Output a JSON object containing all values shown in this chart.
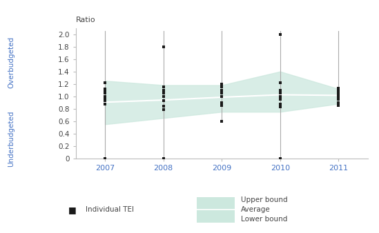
{
  "years": [
    2007,
    2008,
    2009,
    2010,
    2011
  ],
  "scatter_data": {
    "2007": [
      0.0,
      0.87,
      0.93,
      0.97,
      1.0,
      1.05,
      1.08,
      1.12,
      1.22
    ],
    "2008": [
      0.0,
      0.79,
      0.84,
      0.93,
      1.0,
      1.05,
      1.1,
      1.15,
      1.8
    ],
    "2009": [
      0.6,
      0.85,
      0.9,
      1.0,
      1.05,
      1.1,
      1.15,
      1.2
    ],
    "2010": [
      0.0,
      0.83,
      0.88,
      0.95,
      1.0,
      1.05,
      1.1,
      1.22,
      2.0
    ],
    "2011": [
      0.85,
      0.9,
      0.95,
      1.0,
      1.03,
      1.07,
      1.1,
      1.13
    ]
  },
  "vertical_lines": {
    "2007": [
      0.0,
      2.05
    ],
    "2008": [
      0.0,
      2.05
    ],
    "2009": [
      0.6,
      2.05
    ],
    "2010": [
      0.0,
      2.05
    ],
    "2011": [
      0.85,
      2.05
    ]
  },
  "avg_values": [
    0.905,
    0.94,
    0.985,
    1.025,
    1.015
  ],
  "upper_bound": [
    1.25,
    1.18,
    1.18,
    1.4,
    1.12
  ],
  "lower_bound": [
    0.55,
    0.65,
    0.75,
    0.75,
    0.88
  ],
  "ylim": [
    0,
    2.1
  ],
  "yticks": [
    0.0,
    0.2,
    0.4,
    0.6,
    0.8,
    1.0,
    1.2,
    1.4,
    1.6,
    1.8,
    2.0
  ],
  "band_color": "#cce8de",
  "band_alpha": 0.75,
  "avg_line_color": "#ffffff",
  "scatter_color": "#1a1a1a",
  "vline_color": "#aaaaaa",
  "axis_label_color": "#4472c4",
  "tick_color": "#444444",
  "ylabel_over": "Overbudgeted",
  "ylabel_under": "Underbudgeted",
  "ratio_label": "Ratio",
  "background_color": "#ffffff",
  "border_color": "#bbbbbb",
  "x_positions": [
    0,
    1,
    2,
    3,
    4
  ]
}
